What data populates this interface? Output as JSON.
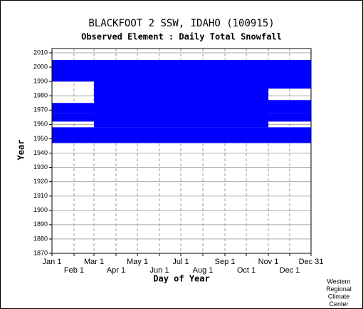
{
  "chart_data": {
    "type": "availability",
    "title": "BLACKFOOT 2 SSW, IDAHO   (100915)",
    "subtitle": "Observed Element : Daily Total Snowfall",
    "xlabel": "Day of Year",
    "ylabel": "Year",
    "credit": [
      "Western",
      "Regional",
      "Climate",
      "Center"
    ],
    "color": "#0000ff",
    "grid": true,
    "xlim": [
      1,
      365
    ],
    "ylim": [
      1870,
      2013
    ],
    "xticks": [
      {
        "value": 1,
        "label": "Jan 1"
      },
      {
        "value": 32,
        "label": "Feb 1"
      },
      {
        "value": 60,
        "label": "Mar 1"
      },
      {
        "value": 91,
        "label": "Apr 1"
      },
      {
        "value": 121,
        "label": "May 1"
      },
      {
        "value": 152,
        "label": "Jun 1"
      },
      {
        "value": 182,
        "label": "Jul 1"
      },
      {
        "value": 213,
        "label": "Aug 1"
      },
      {
        "value": 244,
        "label": "Sep 1"
      },
      {
        "value": 274,
        "label": "Oct 1"
      },
      {
        "value": 305,
        "label": "Nov 1"
      },
      {
        "value": 335,
        "label": "Dec 1"
      },
      {
        "value": 365,
        "label": "Dec 31"
      }
    ],
    "yticks": [
      1870,
      1880,
      1890,
      1900,
      1910,
      1920,
      1930,
      1940,
      1950,
      1960,
      1970,
      1980,
      1990,
      2000,
      2010
    ],
    "blocks": [
      {
        "years": [
          1947,
          1958
        ],
        "days": [
          1,
          365
        ]
      },
      {
        "years": [
          1958,
          2005
        ],
        "days": [
          91,
          305
        ]
      },
      {
        "years": [
          1962,
          1968
        ],
        "days": [
          1,
          365
        ]
      },
      {
        "years": [
          1958,
          2005
        ],
        "days": [
          60,
          91
        ]
      },
      {
        "years": [
          1968,
          1975
        ],
        "days": [
          1,
          60
        ]
      },
      {
        "years": [
          1990,
          2005
        ],
        "days": [
          1,
          60
        ]
      },
      {
        "years": [
          1985,
          2005
        ],
        "days": [
          305,
          365
        ]
      },
      {
        "years": [
          1968,
          1977
        ],
        "days": [
          305,
          365
        ]
      }
    ]
  }
}
